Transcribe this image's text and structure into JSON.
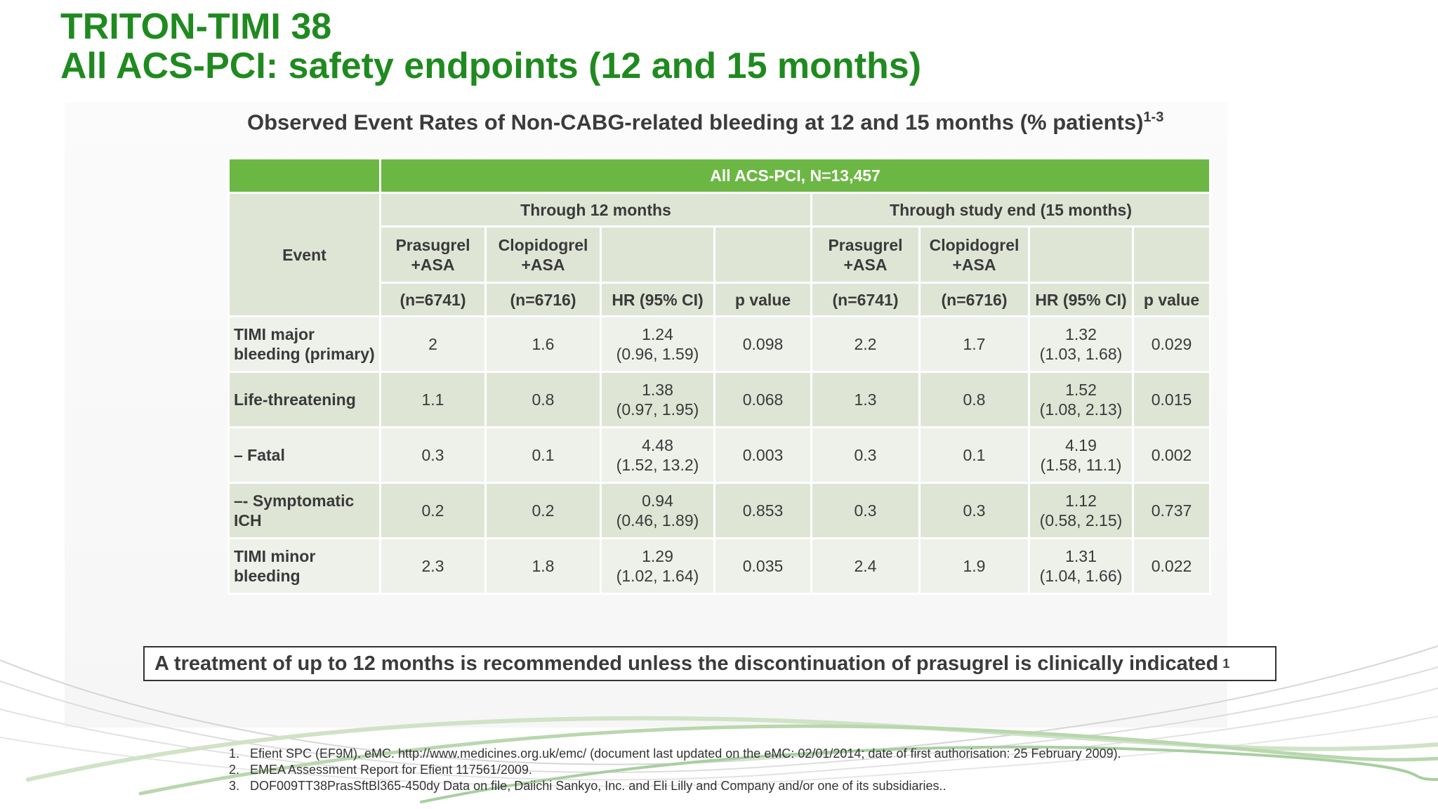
{
  "slide": {
    "title_line1": "TRITON-TIMI 38",
    "title_line2": "All ACS-PCI: safety endpoints (12 and 15 months)",
    "subtitle": "Observed Event Rates of Non-CABG-related bleeding at 12 and 15 months (% patients)",
    "subtitle_sup": "1-3",
    "accent_color": "#1f8a1f",
    "header_color": "#6cb744"
  },
  "table": {
    "population": "All ACS-PCI, N=13,457",
    "event_header": "Event",
    "period_12": "Through 12 months",
    "period_15": "Through study end (15 months)",
    "col_prasugrel": "Prasugrel +ASA",
    "col_clopidogrel": "Clopidogrel +ASA",
    "n_prasugrel": "(n=6741)",
    "n_clopidogrel": "(n=6716)",
    "col_hr": "HR (95% CI)",
    "col_p": "p value",
    "rows": [
      {
        "event": "TIMI major bleeding (primary)",
        "p12": "2",
        "c12": "1.6",
        "hr12": "1.24",
        "ci12": "(0.96, 1.59)",
        "pv12": "0.098",
        "p15": "2.2",
        "c15": "1.7",
        "hr15": "1.32",
        "ci15": "(1.03, 1.68)",
        "pv15": "0.029"
      },
      {
        "event": "Life-threatening",
        "p12": "1.1",
        "c12": "0.8",
        "hr12": "1.38",
        "ci12": "(0.97, 1.95)",
        "pv12": "0.068",
        "p15": "1.3",
        "c15": "0.8",
        "hr15": "1.52",
        "ci15": "(1.08, 2.13)",
        "pv15": "0.015"
      },
      {
        "event": "– Fatal",
        "p12": "0.3",
        "c12": "0.1",
        "hr12": "4.48",
        "ci12": "(1.52, 13.2)",
        "pv12": "0.003",
        "p15": "0.3",
        "c15": "0.1",
        "hr15": "4.19",
        "ci15": "(1.58, 11.1)",
        "pv15": "0.002"
      },
      {
        "event": "–- Symptomatic ICH",
        "p12": "0.2",
        "c12": "0.2",
        "hr12": "0.94",
        "ci12": "(0.46, 1.89)",
        "pv12": "0.853",
        "p15": "0.3",
        "c15": "0.3",
        "hr15": "1.12",
        "ci15": "(0.58, 2.15)",
        "pv15": "0.737"
      },
      {
        "event": "TIMI minor bleeding",
        "p12": "2.3",
        "c12": "1.8",
        "hr12": "1.29",
        "ci12": "(1.02, 1.64)",
        "pv12": "0.035",
        "p15": "2.4",
        "c15": "1.9",
        "hr15": "1.31",
        "ci15": "(1.04, 1.66)",
        "pv15": "0.022"
      }
    ]
  },
  "recommendation": {
    "text": "A treatment of up to 12 months is recommended unless the discontinuation of prasugrel is clinically indicated",
    "sup": "1"
  },
  "references": [
    {
      "num": "1.",
      "text": "Efient SPC (EF9M).  eMC.  http://www.medicines.org.uk/emc/ (document last updated on the eMC: 02/01/2014; date of first authorisation: 25 February 2009)."
    },
    {
      "num": "2.",
      "text": "EMEA Assessment Report for Efient 117561/2009."
    },
    {
      "num": "3.",
      "text": "DOF009TT38PrasSftBl365-450dy Data on file, Daiichi Sankyo, Inc. and Eli Lilly and Company and/or one of its subsidiaries.."
    }
  ]
}
